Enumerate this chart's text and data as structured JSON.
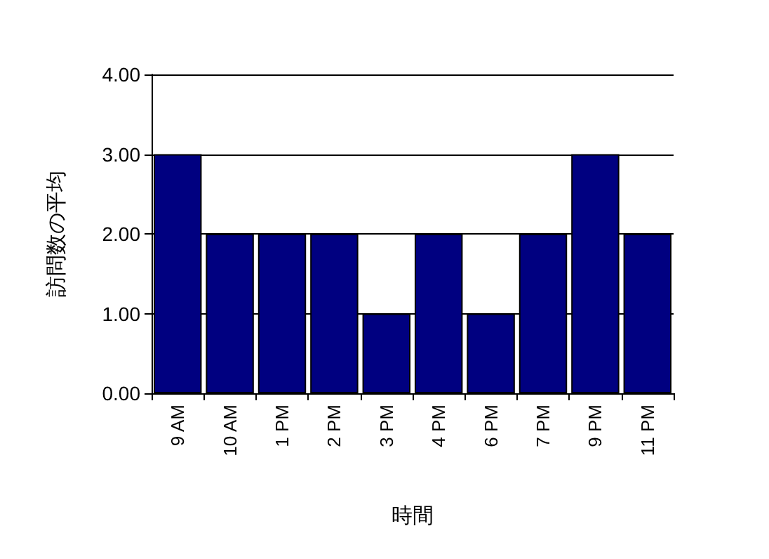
{
  "chart_data": {
    "type": "bar",
    "xlabel": "時間",
    "ylabel": "訪問数の平均",
    "categories": [
      "9 AM",
      "10 AM",
      "1 PM",
      "2 PM",
      "3 PM",
      "4 PM",
      "6 PM",
      "7 PM",
      "9 PM",
      "11 PM"
    ],
    "values": [
      3,
      2,
      2,
      2,
      1,
      2,
      1,
      2,
      3,
      2
    ],
    "color": "#000080",
    "ylim": [
      0,
      4
    ],
    "yticks": [
      {
        "value": 0,
        "label": "0.00"
      },
      {
        "value": 1,
        "label": "1.00"
      },
      {
        "value": 2,
        "label": "2.00"
      },
      {
        "value": 3,
        "label": "3.00"
      },
      {
        "value": 4,
        "label": "4.00"
      }
    ],
    "grid": "y"
  }
}
